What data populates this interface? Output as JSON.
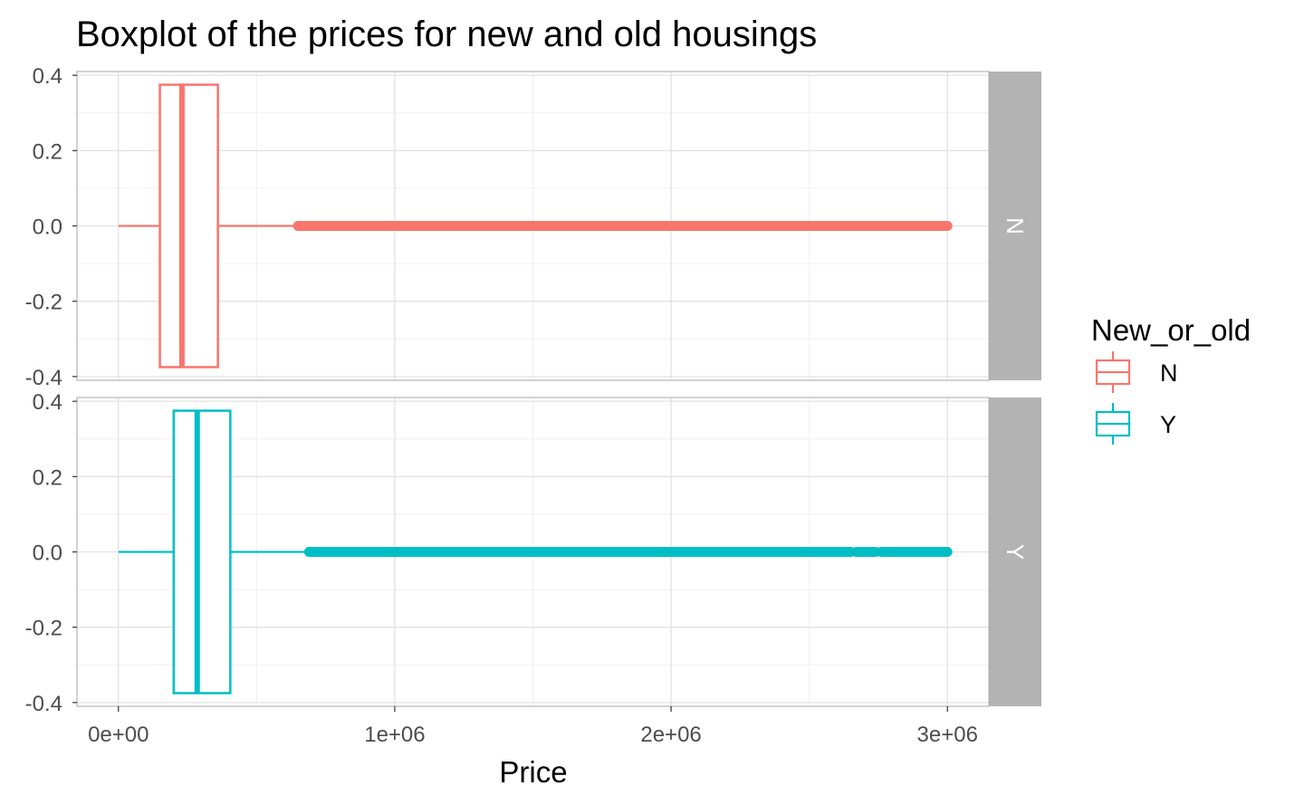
{
  "chart_data": {
    "type": "boxplot",
    "title": "Boxplot of the prices for new and old housings",
    "xlabel": "Price",
    "ylabel": "",
    "xlim": [
      -150000,
      3150000
    ],
    "ylim": [
      -0.41,
      0.41
    ],
    "x_ticks": [
      0,
      1000000,
      2000000,
      3000000
    ],
    "x_tick_labels": [
      "0e+00",
      "1e+06",
      "2e+06",
      "3e+06"
    ],
    "y_ticks": [
      -0.4,
      -0.2,
      0.0,
      0.2,
      0.4
    ],
    "y_tick_labels": [
      "-0.4",
      "-0.2",
      "0.0",
      "0.2",
      "0.4"
    ],
    "grid": true,
    "legend": {
      "title": "New_or_old",
      "position": "right",
      "entries": [
        {
          "label": "N",
          "color": "#F8766D"
        },
        {
          "label": "Y",
          "color": "#00BFC4"
        }
      ]
    },
    "facets": [
      {
        "strip_label": "N",
        "group": "N",
        "color": "#F8766D",
        "box": {
          "whisker_low": 0,
          "q1": 150000,
          "median": 230000,
          "q3": 360000,
          "whisker_high": 650000
        },
        "box_halfwidth": 0.375,
        "outlier_segments": [
          [
            650000,
            3000000
          ]
        ]
      },
      {
        "strip_label": "Y",
        "group": "Y",
        "color": "#00BFC4",
        "box": {
          "whisker_low": 0,
          "q1": 200000,
          "median": 285000,
          "q3": 405000,
          "whisker_high": 690000
        },
        "box_halfwidth": 0.375,
        "outlier_segments": [
          [
            690000,
            2650000
          ],
          [
            2670000,
            2740000
          ],
          [
            2760000,
            3000000
          ]
        ]
      }
    ]
  }
}
